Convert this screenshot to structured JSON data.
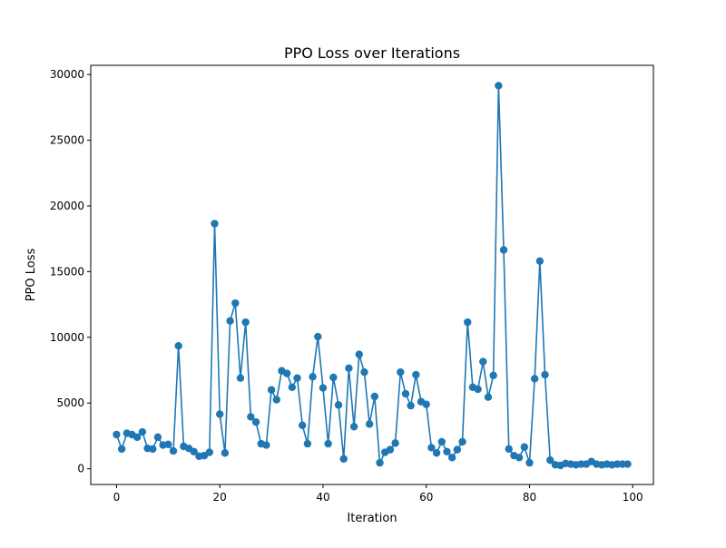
{
  "chart_data": {
    "type": "line",
    "title": "PPO Loss over Iterations",
    "xlabel": "Iteration",
    "ylabel": "PPO Loss",
    "xlim": [
      -5,
      104
    ],
    "ylim": [
      -1200,
      30700
    ],
    "xticks": [
      0,
      20,
      40,
      60,
      80,
      100
    ],
    "yticks": [
      0,
      5000,
      10000,
      15000,
      20000,
      25000,
      30000
    ],
    "grid": false,
    "legend": "none",
    "line_color": "#1f77b4",
    "marker": "circle",
    "series": [
      {
        "x": [
          0,
          1,
          2,
          3,
          4,
          5,
          6,
          7,
          8,
          9,
          10,
          11,
          12,
          13,
          14,
          15,
          16,
          17,
          18,
          19,
          20,
          21,
          22,
          23,
          24,
          25,
          26,
          27,
          28,
          29,
          30,
          31,
          32,
          33,
          34,
          35,
          36,
          37,
          38,
          39,
          40,
          41,
          42,
          43,
          44,
          45,
          46,
          47,
          48,
          49,
          50,
          51,
          52,
          53,
          54,
          55,
          56,
          57,
          58,
          59,
          60,
          61,
          62,
          63,
          64,
          65,
          66,
          67,
          68,
          69,
          70,
          71,
          72,
          73,
          74,
          75,
          76,
          77,
          78,
          79,
          80,
          81,
          82,
          83,
          84,
          85,
          86,
          87,
          88,
          89,
          90,
          91,
          92,
          93,
          94,
          95,
          96,
          97,
          98,
          99
        ],
        "values": [
          2600,
          1500,
          2700,
          2600,
          2400,
          2800,
          1550,
          1500,
          2400,
          1800,
          1850,
          1350,
          9350,
          1700,
          1550,
          1300,
          950,
          1000,
          1250,
          18650,
          4150,
          1200,
          11250,
          12600,
          6900,
          11150,
          3950,
          3550,
          1900,
          1800,
          6000,
          5250,
          7450,
          7250,
          6200,
          6900,
          3300,
          1900,
          7000,
          10050,
          6150,
          1900,
          6950,
          4850,
          750,
          7650,
          3200,
          8700,
          7350,
          3400,
          5500,
          450,
          1250,
          1450,
          1950,
          7350,
          5700,
          4800,
          7150,
          5100,
          4900,
          1600,
          1200,
          2050,
          1300,
          850,
          1450,
          2050,
          11150,
          6200,
          6050,
          8150,
          5450,
          7100,
          29150,
          16650,
          1500,
          1000,
          850,
          1650,
          450,
          6850,
          15800,
          7150,
          650,
          300,
          250,
          400,
          350,
          300,
          350,
          350,
          550,
          350,
          300,
          350,
          300,
          350,
          350,
          350
        ]
      }
    ]
  }
}
